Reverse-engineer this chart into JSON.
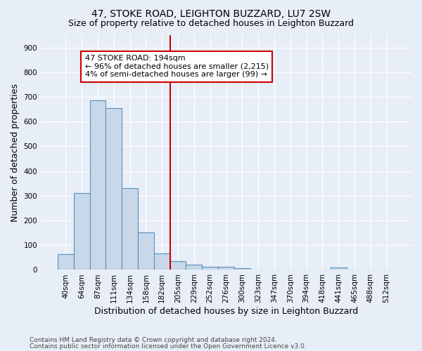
{
  "title": "47, STOKE ROAD, LEIGHTON BUZZARD, LU7 2SW",
  "subtitle": "Size of property relative to detached houses in Leighton Buzzard",
  "xlabel": "Distribution of detached houses by size in Leighton Buzzard",
  "ylabel": "Number of detached properties",
  "footnote1": "Contains HM Land Registry data © Crown copyright and database right 2024.",
  "footnote2": "Contains public sector information licensed under the Open Government Licence v3.0.",
  "bar_labels": [
    "40sqm",
    "64sqm",
    "87sqm",
    "111sqm",
    "134sqm",
    "158sqm",
    "182sqm",
    "205sqm",
    "229sqm",
    "252sqm",
    "276sqm",
    "300sqm",
    "323sqm",
    "347sqm",
    "370sqm",
    "394sqm",
    "418sqm",
    "441sqm",
    "465sqm",
    "488sqm",
    "512sqm"
  ],
  "bar_values": [
    65,
    310,
    685,
    655,
    330,
    152,
    68,
    35,
    20,
    12,
    12,
    8,
    0,
    0,
    0,
    0,
    0,
    10,
    0,
    0,
    0
  ],
  "bar_color": "#c8d8e8",
  "bar_edge_color": "#5590c0",
  "vline_x_idx": 7,
  "vline_color": "#cc0000",
  "annotation_line1": "47 STOKE ROAD: 194sqm",
  "annotation_line2": "← 96% of detached houses are smaller (2,215)",
  "annotation_line3": "4% of semi-detached houses are larger (99) →",
  "annotation_box_color": "white",
  "annotation_box_edge": "#cc0000",
  "ylim": [
    0,
    950
  ],
  "yticks": [
    0,
    100,
    200,
    300,
    400,
    500,
    600,
    700,
    800,
    900
  ],
  "bg_color": "#e8eef8",
  "plot_bg_color": "#e8eef8",
  "title_fontsize": 10,
  "subtitle_fontsize": 9,
  "ylabel_fontsize": 9,
  "xlabel_fontsize": 9,
  "tick_fontsize": 7.5,
  "footnote_fontsize": 6.5
}
